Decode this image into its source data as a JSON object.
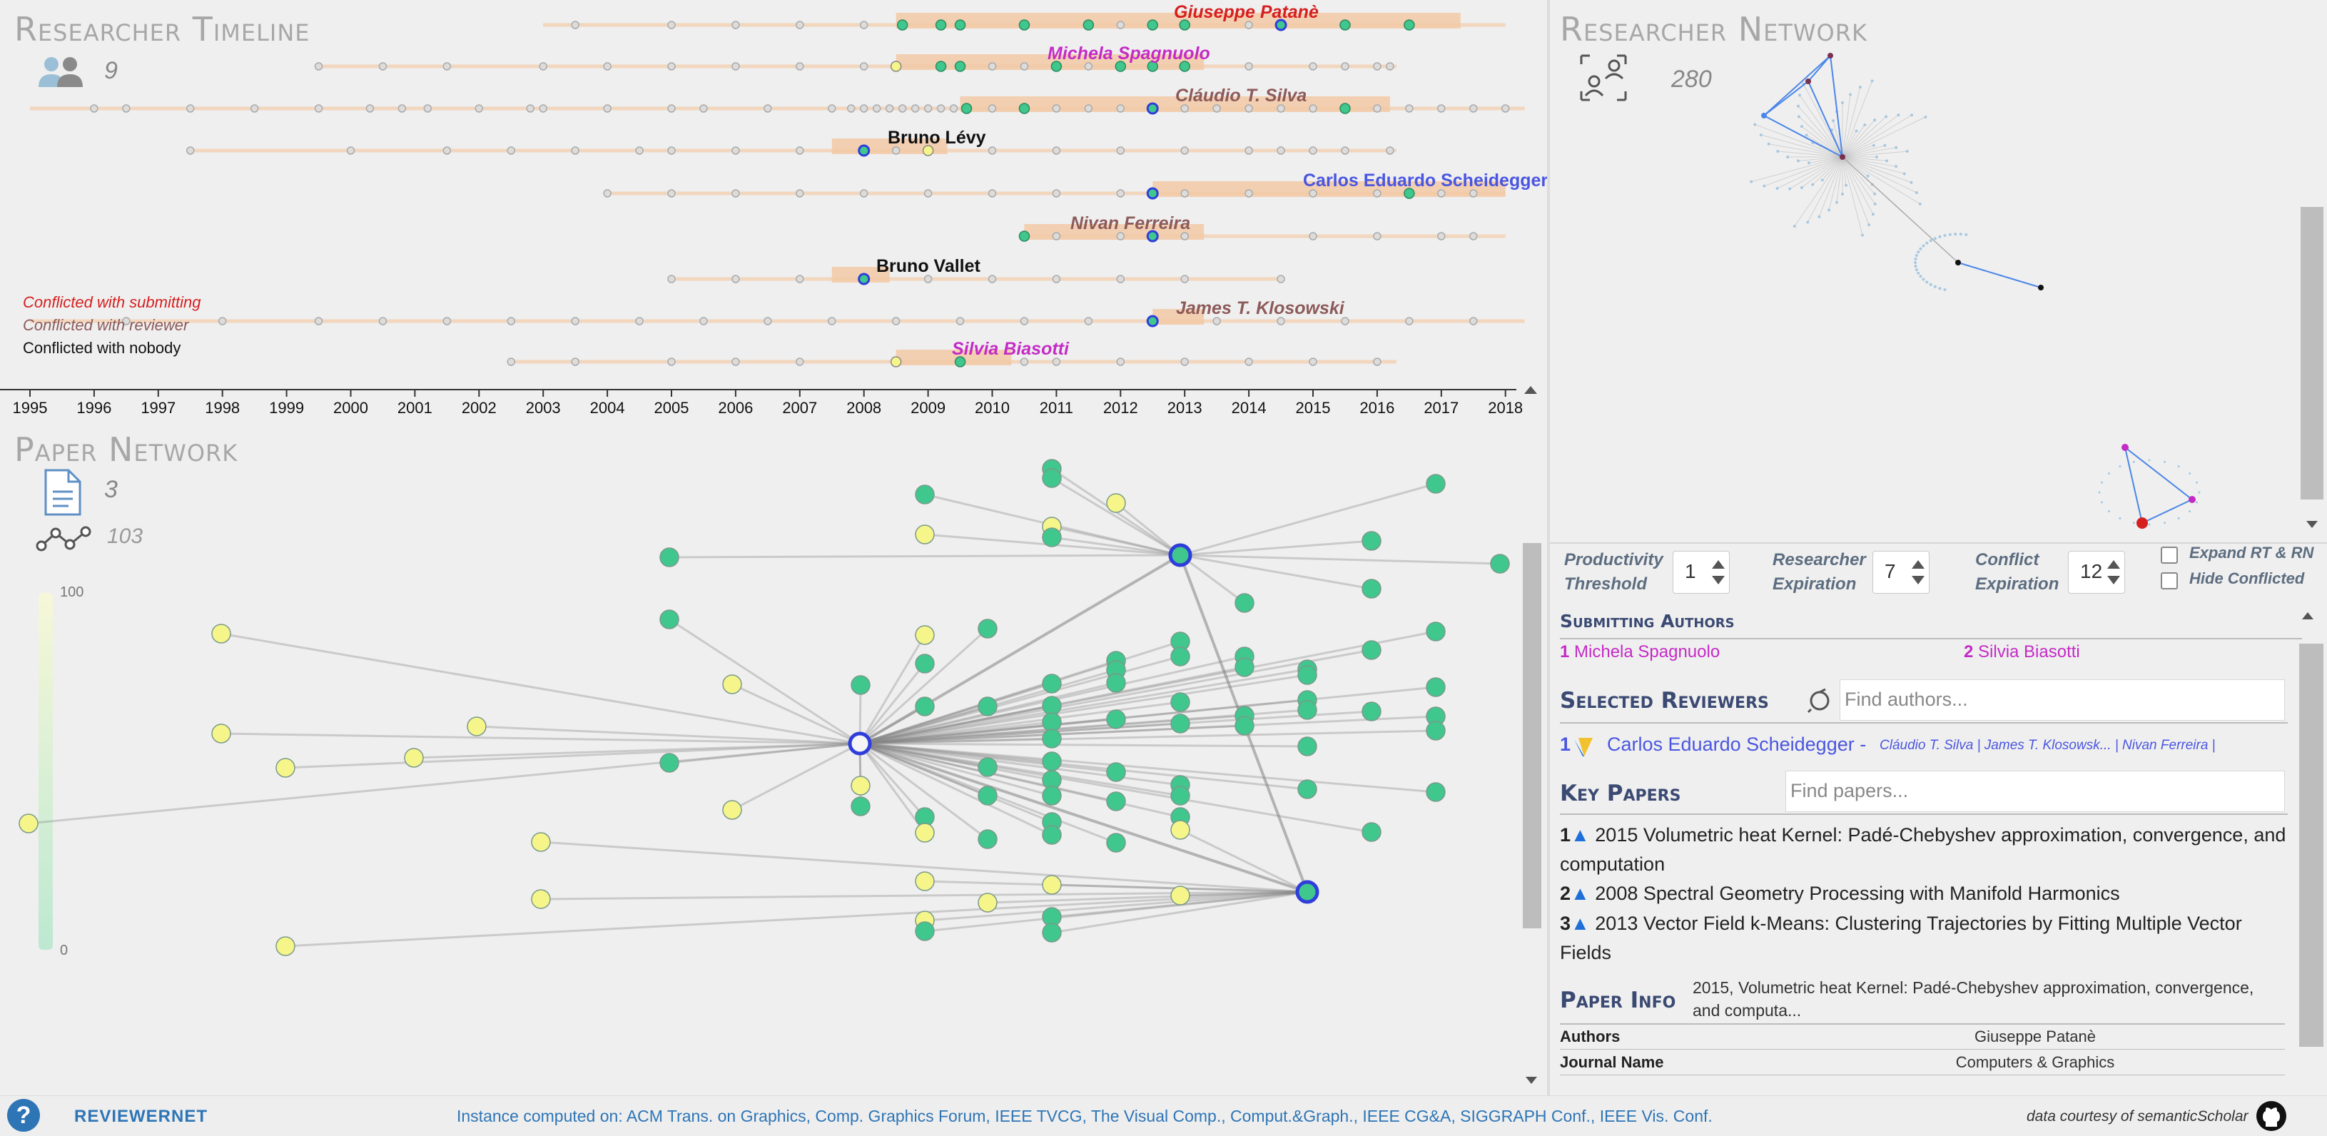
{
  "researcher_timeline": {
    "title": "Researcher Timeline",
    "count": "9",
    "years": [
      "1995",
      "1996",
      "1997",
      "1998",
      "1999",
      "2000",
      "2001",
      "2002",
      "2003",
      "2004",
      "2005",
      "2006",
      "2007",
      "2008",
      "2009",
      "2010",
      "2011",
      "2012",
      "2013",
      "2014",
      "2015",
      "2016",
      "2017",
      "2018"
    ],
    "researchers": [
      {
        "name": "Giuseppe Patanè",
        "color": "#d62020",
        "italic": true
      },
      {
        "name": "Michela Spagnuolo",
        "color": "#c42bc6",
        "italic": true
      },
      {
        "name": "Cláudio T. Silva",
        "color": "#8d5a5a",
        "italic": true
      },
      {
        "name": "Bruno Lévy",
        "color": "#111111",
        "italic": false
      },
      {
        "name": "Carlos Eduardo Scheidegger",
        "color": "#4a56e0",
        "italic": false
      },
      {
        "name": "Nivan Ferreira",
        "color": "#8d5a5a",
        "italic": true
      },
      {
        "name": "Bruno Vallet",
        "color": "#111111",
        "italic": false
      },
      {
        "name": "James T. Klosowski",
        "color": "#8d5a5a",
        "italic": true
      },
      {
        "name": "Silvia Biasotti",
        "color": "#c42bc6",
        "italic": true
      }
    ],
    "legend": {
      "submitting": "Conflicted with submitting",
      "reviewer": "Conflicted with reviewer",
      "nobody": "Conflicted with nobody"
    }
  },
  "researcher_network": {
    "title": "Researcher Network",
    "count": "280"
  },
  "paper_network": {
    "title": "Paper Network",
    "papers_count": "3",
    "links_count": "103",
    "scale_max": "100",
    "scale_min": "0"
  },
  "controls": {
    "productivity_label": [
      "Productivity",
      "Threshold"
    ],
    "productivity_value": "1",
    "expiration_label": [
      "Researcher",
      "Expiration"
    ],
    "expiration_value": "7",
    "conflict_label": [
      "Conflict",
      "Expiration"
    ],
    "conflict_value": "12",
    "expand_label": "Expand RT & RN",
    "hide_label": "Hide Conflicted"
  },
  "submitting_authors": {
    "title": "Submitting Authors",
    "authors": [
      {
        "num": "1",
        "name": "Michela Spagnuolo"
      },
      {
        "num": "2",
        "name": "Silvia Biasotti"
      }
    ]
  },
  "selected_reviewers": {
    "title": "Selected Reviewers",
    "search_placeholder": "Find authors...",
    "reviewers": [
      {
        "num": "1",
        "name": "Carlos Eduardo Scheidegger -",
        "coauthors": "Cláudio T. Silva | James T. Klosowsk... | Nivan Ferreira |"
      }
    ]
  },
  "key_papers": {
    "title": "Key Papers",
    "search_placeholder": "Find papers...",
    "papers": [
      {
        "num": "1",
        "text": "2015 Volumetric heat Kernel: Padé-Chebyshev approximation, convergence, and computation"
      },
      {
        "num": "2",
        "text": "2008 Spectral Geometry Processing with Manifold Harmonics"
      },
      {
        "num": "3",
        "text": "2013 Vector Field k-Means: Clustering Trajectories by Fitting Multiple Vector Fields"
      }
    ]
  },
  "paper_info": {
    "title": "Paper Info",
    "summary": "2015, Volumetric heat Kernel: Padé-Chebyshev approximation, convergence, and computa...",
    "rows": [
      {
        "key": "Authors",
        "value": "Giuseppe Patanè"
      },
      {
        "key": "Journal Name",
        "value": "Computers & Graphics"
      }
    ]
  },
  "footer": {
    "help": "?",
    "brand": "REVIEWERNET",
    "instance": "Instance computed on: ACM Trans. on Graphics, Comp. Graphics Forum, IEEE TVCG, The Visual Comp., Comput.&Graph., IEEE CG&A, SIGGRAPH Conf., IEEE Vis. Conf.",
    "credit": "data courtesy of semanticScholar"
  },
  "colors": {
    "node_green": "#3fc78e",
    "node_yellow": "#f5f58a",
    "center_blue": "#2f3ddb",
    "bar_peach": "#f2c9a6",
    "link_blue": "#4a86e8"
  }
}
